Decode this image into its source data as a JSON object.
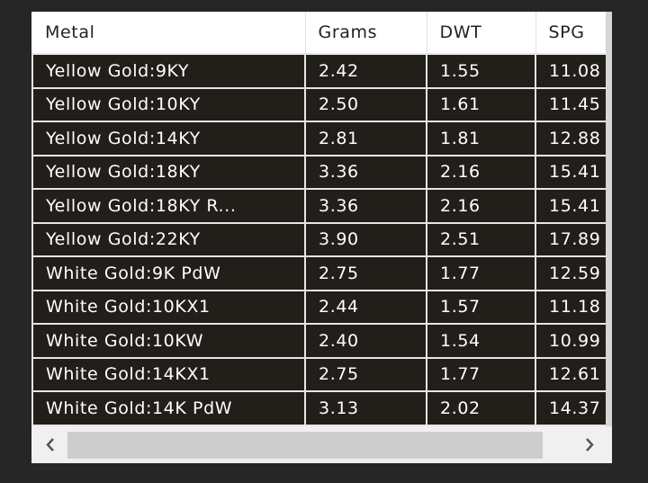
{
  "table": {
    "headers": [
      "Metal",
      "Grams",
      "DWT",
      "SPG"
    ],
    "rows": [
      [
        "Yellow Gold:9KY",
        "2.42",
        "1.55",
        "11.08"
      ],
      [
        "Yellow Gold:10KY",
        "2.50",
        "1.61",
        "11.45"
      ],
      [
        "Yellow Gold:14KY",
        "2.81",
        "1.81",
        "12.88"
      ],
      [
        "Yellow Gold:18KY",
        "3.36",
        "2.16",
        "15.41"
      ],
      [
        "Yellow Gold:18KY R...",
        "3.36",
        "2.16",
        "15.41"
      ],
      [
        "Yellow Gold:22KY",
        "3.90",
        "2.51",
        "17.89"
      ],
      [
        "White Gold:9K PdW",
        "2.75",
        "1.77",
        "12.59"
      ],
      [
        "White Gold:10KX1",
        "2.44",
        "1.57",
        "11.18"
      ],
      [
        "White Gold:10KW",
        "2.40",
        "1.54",
        "10.99"
      ],
      [
        "White Gold:14KX1",
        "2.75",
        "1.77",
        "12.61"
      ],
      [
        "White Gold:14K PdW",
        "3.13",
        "2.02",
        "14.37"
      ]
    ]
  }
}
